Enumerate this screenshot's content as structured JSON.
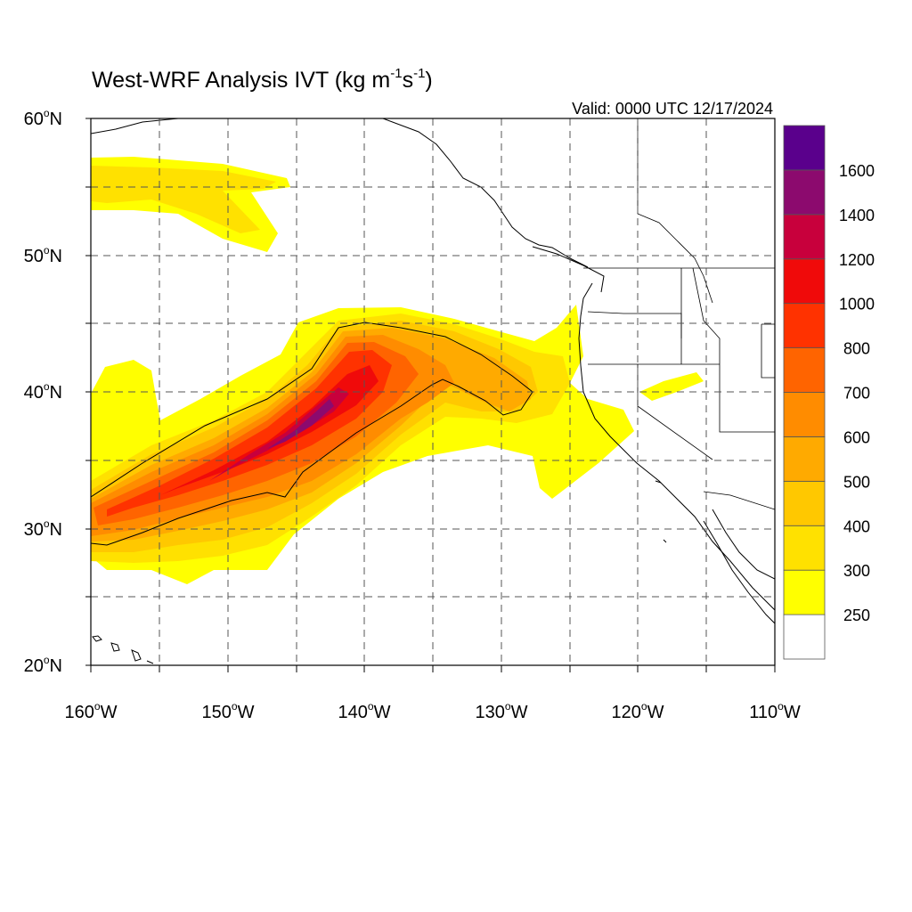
{
  "map": {
    "title": {
      "main": "West-WRF Analysis IVT (kg m",
      "u1": "-1",
      "mid": "s",
      "u2": "-1",
      "end": ")"
    },
    "valid_label": "Valid: 0000 UTC 12/17/2024",
    "lat_labels": [
      "60",
      "50",
      "40",
      "30",
      "20"
    ],
    "lat_suffix": "N",
    "lon_labels": [
      "160",
      "150",
      "140",
      "130",
      "120",
      "110"
    ],
    "lon_suffix": "W",
    "degree_symbol": "o",
    "extent": {
      "lon_min": -160,
      "lon_max": -110,
      "lat_min": 20,
      "lat_max": 60
    },
    "gridlines": "dashed every 5 degrees"
  },
  "colorbar": {
    "units": "kg m-1 s-1",
    "levels": [
      {
        "color": "#ffffff",
        "label": ""
      },
      {
        "color": "#ffff00",
        "label": "250"
      },
      {
        "color": "#ffe100",
        "label": "300"
      },
      {
        "color": "#ffc800",
        "label": "400"
      },
      {
        "color": "#ffaa00",
        "label": "500"
      },
      {
        "color": "#ff8c00",
        "label": "600"
      },
      {
        "color": "#ff6400",
        "label": "700"
      },
      {
        "color": "#ff3200",
        "label": "800"
      },
      {
        "color": "#f00a0a",
        "label": "1000"
      },
      {
        "color": "#c8003c",
        "label": "1200"
      },
      {
        "color": "#8c0a6e",
        "label": "1400"
      },
      {
        "color": "#5a008c",
        "label": "1600"
      }
    ]
  }
}
